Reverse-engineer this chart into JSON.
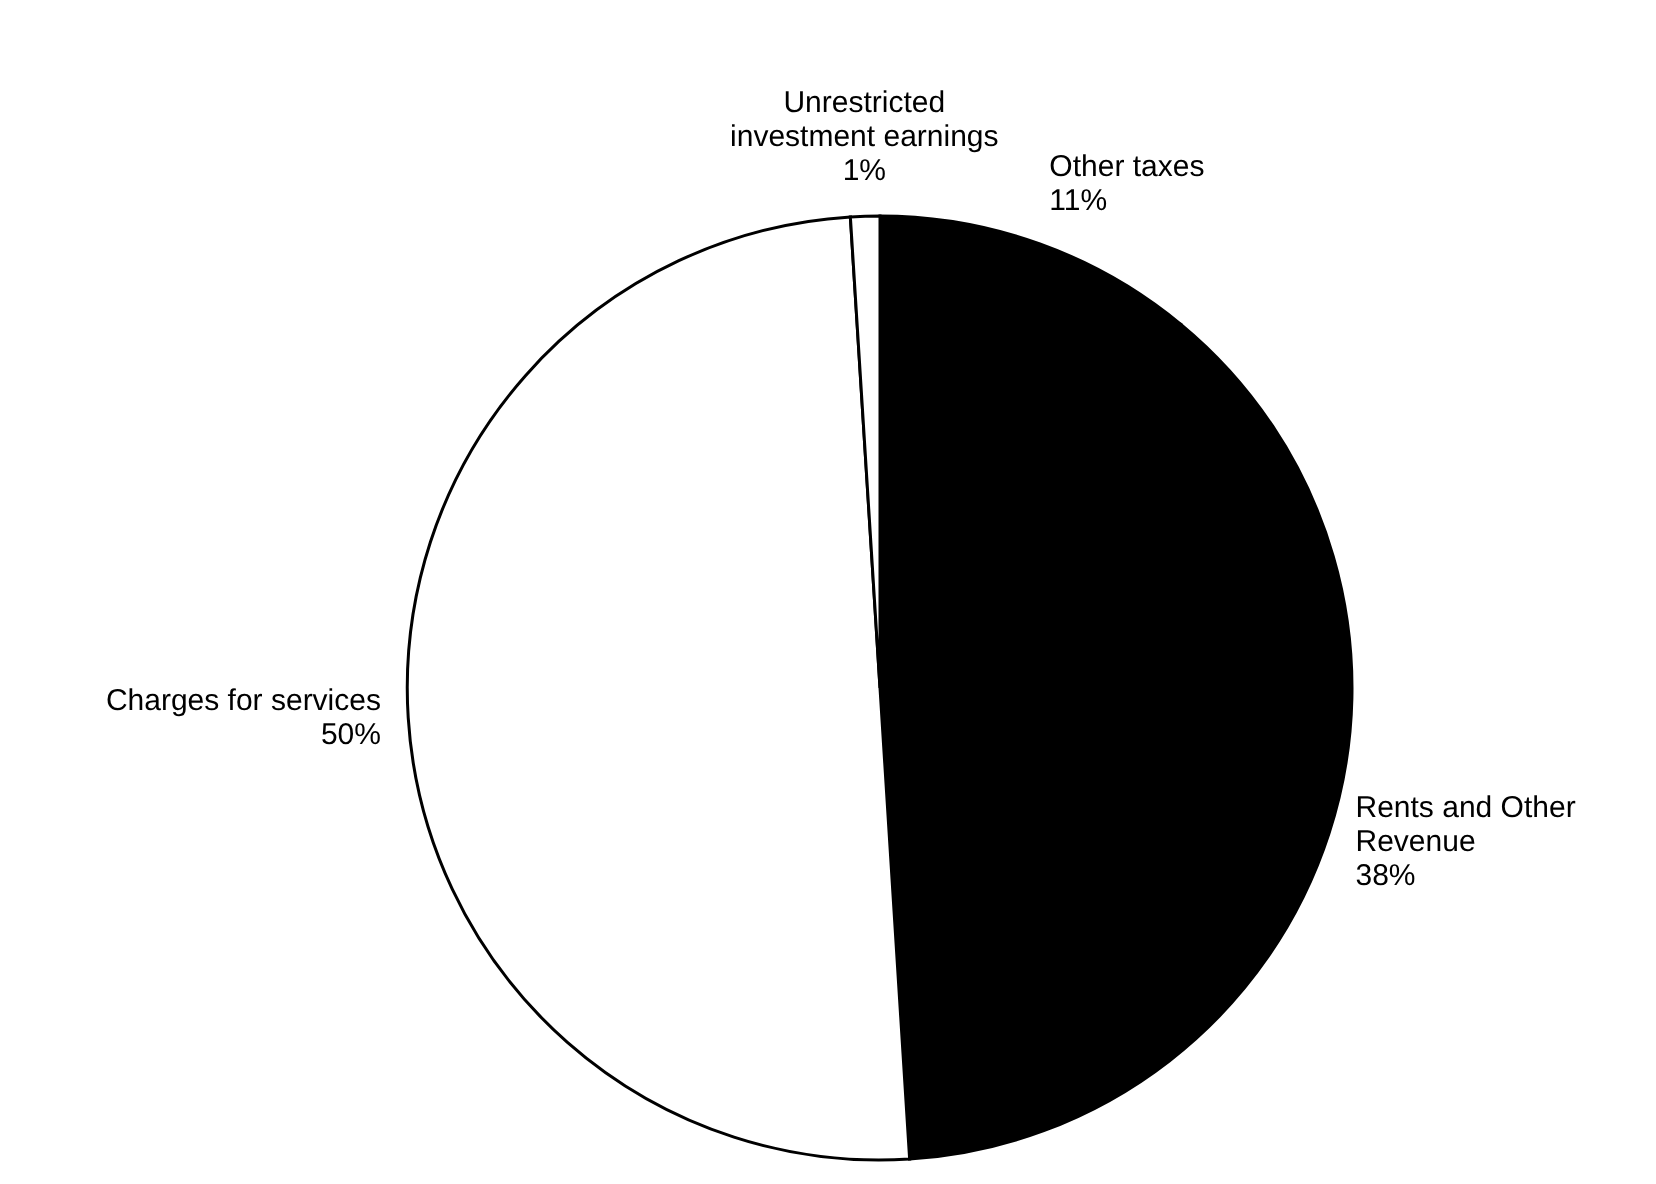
{
  "chart_data": {
    "type": "pie",
    "categories": [
      "Other taxes",
      "Rents and Other Revenue",
      "Charges for services",
      "Unrestricted investment earnings"
    ],
    "values": [
      11,
      38,
      50,
      1
    ],
    "value_labels": [
      "11%",
      "38%",
      "50%",
      "1%"
    ],
    "colors": [
      "#000000",
      "#000000",
      "#ffffff",
      "#ffffff"
    ]
  }
}
